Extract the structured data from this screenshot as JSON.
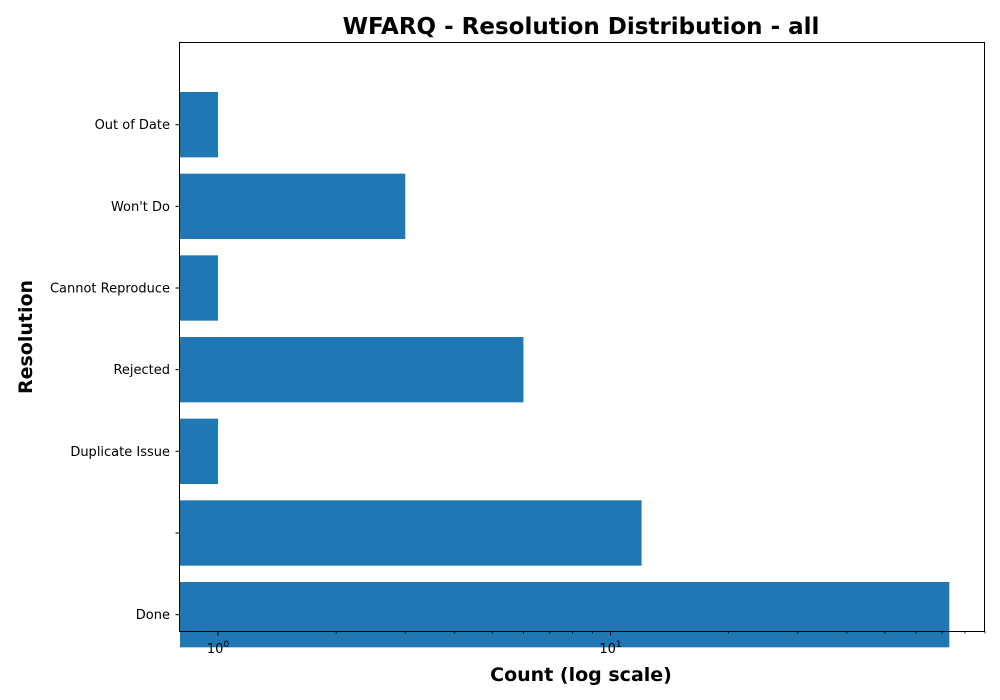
{
  "chart_data": {
    "type": "bar",
    "orientation": "horizontal",
    "title": "WFARQ - Resolution Distribution - all",
    "xlabel": "Count (log scale)",
    "ylabel": "Resolution",
    "x_scale": "log",
    "xlim": [
      0.8,
      90
    ],
    "x_ticks": [
      {
        "value": 1,
        "base": "10",
        "exp": "0"
      },
      {
        "value": 10,
        "base": "10",
        "exp": "1"
      }
    ],
    "categories": [
      "Done",
      "",
      "Duplicate Issue",
      "Rejected",
      "Cannot Reproduce",
      "Won't Do",
      "Out of Date"
    ],
    "values": [
      73,
      12,
      1,
      6,
      1,
      3,
      1
    ],
    "color": "#1f77b4",
    "grid": false
  }
}
